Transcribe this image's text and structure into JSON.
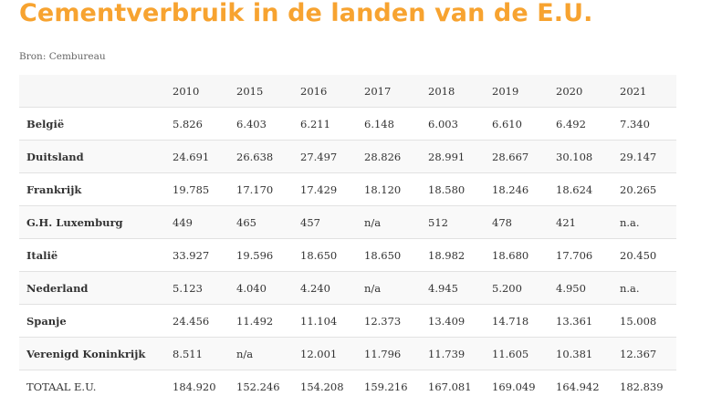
{
  "title": "Cementverbruik in de landen van de E.U.",
  "source": "Bron: Cembureau",
  "table": {
    "corner": "",
    "years": [
      "2010",
      "2015",
      "2016",
      "2017",
      "2018",
      "2019",
      "2020",
      "2021"
    ],
    "rows": [
      {
        "country": "België",
        "values": [
          "5.826",
          "6.403",
          "6.211",
          "6.148",
          "6.003",
          "6.610",
          "6.492",
          "7.340"
        ]
      },
      {
        "country": "Duitsland",
        "values": [
          "24.691",
          "26.638",
          "27.497",
          "28.826",
          "28.991",
          "28.667",
          "30.108",
          "29.147"
        ]
      },
      {
        "country": "Frankrijk",
        "values": [
          "19.785",
          "17.170",
          "17.429",
          "18.120",
          "18.580",
          "18.246",
          "18.624",
          "20.265"
        ]
      },
      {
        "country": "G.H. Luxemburg",
        "values": [
          "449",
          "465",
          "457",
          "n/a",
          "512",
          "478",
          "421",
          "n.a."
        ]
      },
      {
        "country": "Italië",
        "values": [
          "33.927",
          "19.596",
          "18.650",
          "18.650",
          "18.982",
          "18.680",
          "17.706",
          "20.450"
        ]
      },
      {
        "country": "Nederland",
        "values": [
          "5.123",
          "4.040",
          "4.240",
          "n/a",
          "4.945",
          "5.200",
          "4.950",
          "n.a."
        ]
      },
      {
        "country": "Spanje",
        "values": [
          "24.456",
          "11.492",
          "11.104",
          "12.373",
          "13.409",
          "14.718",
          "13.361",
          "15.008"
        ]
      },
      {
        "country": "Verenigd Koninkrijk",
        "values": [
          "8.511",
          "n/a",
          "12.001",
          "11.796",
          "11.739",
          "11.605",
          "10.381",
          "12.367"
        ]
      },
      {
        "country": "TOTAAL E.U.",
        "values": [
          "184.920",
          "152.246",
          "154.208",
          "159.216",
          "167.081",
          "169.049",
          "164.942",
          "182.839"
        ]
      }
    ]
  },
  "colors": {
    "title": "#f7a330",
    "header_bg": "#f7f7f7",
    "row_alt_bg": "#f9f9f9",
    "border": "#e2e2e2",
    "text": "#333333"
  }
}
